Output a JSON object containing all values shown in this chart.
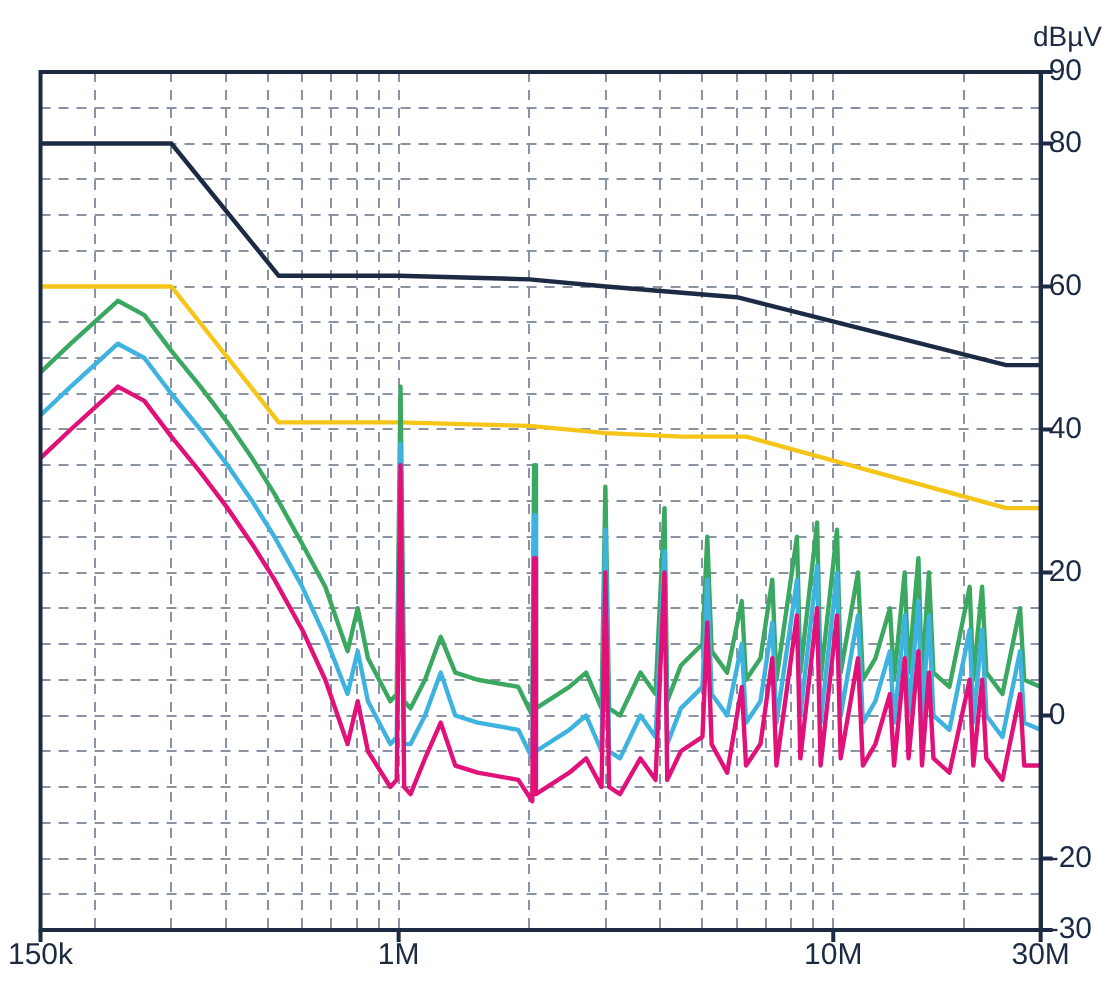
{
  "chart_data": {
    "type": "line",
    "ylabel": "dBµV",
    "log": "x",
    "grid": true,
    "marker": "none",
    "line_style": "solid",
    "xlim": [
      150000,
      30000000
    ],
    "xticks": [
      {
        "value": 150000,
        "label": "150k"
      },
      {
        "value": 200000,
        "label": null
      },
      {
        "value": 300000,
        "label": null
      },
      {
        "value": 400000,
        "label": null
      },
      {
        "value": 500000,
        "label": null
      },
      {
        "value": 600000,
        "label": null
      },
      {
        "value": 700000,
        "label": null
      },
      {
        "value": 800000,
        "label": null
      },
      {
        "value": 900000,
        "label": null
      },
      {
        "value": 1000000,
        "label": "1M"
      },
      {
        "value": 2000000,
        "label": null
      },
      {
        "value": 3000000,
        "label": null
      },
      {
        "value": 4000000,
        "label": null
      },
      {
        "value": 5000000,
        "label": null
      },
      {
        "value": 6000000,
        "label": null
      },
      {
        "value": 7000000,
        "label": null
      },
      {
        "value": 8000000,
        "label": null
      },
      {
        "value": 9000000,
        "label": null
      },
      {
        "value": 10000000,
        "label": "10M"
      },
      {
        "value": 20000000,
        "label": null
      },
      {
        "value": 30000000,
        "label": "30M"
      }
    ],
    "ylim": [
      -30,
      90
    ],
    "yticks": [
      -30,
      {
        "value": -25,
        "label": null
      },
      -20,
      {
        "value": -15,
        "label": null
      },
      {
        "value": -10,
        "label": null
      },
      {
        "value": -5,
        "label": null
      },
      0,
      {
        "value": 5,
        "label": null
      },
      {
        "value": 10,
        "label": null
      },
      {
        "value": 15,
        "label": null
      },
      20,
      {
        "value": 25,
        "label": null
      },
      {
        "value": 30,
        "label": null
      },
      {
        "value": 35,
        "label": null
      },
      40,
      {
        "value": 45,
        "label": null
      },
      {
        "value": 50,
        "label": null
      },
      {
        "value": 55,
        "label": null
      },
      60,
      {
        "value": 65,
        "label": null
      },
      {
        "value": 70,
        "label": null
      },
      {
        "value": 75,
        "label": null
      },
      80,
      {
        "value": 85,
        "label": null
      },
      90
    ],
    "series": [
      {
        "color": "#1c2a44",
        "x": [
          150000,
          300000,
          530000,
          1000000,
          2000000,
          3000000,
          6000000,
          25000000,
          30000000
        ],
        "values": [
          80,
          80,
          61.5,
          61.5,
          61,
          60,
          58.5,
          49,
          49
        ]
      },
      {
        "color": "#f5c518",
        "x": [
          150000,
          300000,
          530000,
          1000000,
          2000000,
          3000000,
          4500000,
          6300000,
          25000000,
          30000000
        ],
        "values": [
          60,
          60,
          41,
          41,
          40.5,
          39.5,
          39,
          39,
          29,
          29
        ]
      },
      {
        "color": "#3aa860",
        "x": [
          150000,
          176000,
          226000,
          260000,
          300000,
          350000,
          404000,
          460000,
          518000,
          600000,
          678000,
          763000,
          805000,
          850000,
          957000,
          990000,
          1010000,
          1030000,
          1065000,
          1150000,
          1250000,
          1350000,
          1520000,
          1885000,
          2030000,
          2050000,
          2070000,
          2470000,
          2700000,
          2930000,
          2990000,
          3050000,
          3230000,
          3600000,
          3900000,
          4090000,
          4150000,
          4460000,
          5000000,
          5130000,
          5250000,
          5700000,
          6160000,
          6300000,
          6800000,
          7240000,
          7400000,
          8250000,
          8400000,
          9180000,
          9350000,
          10200000,
          10400000,
          11400000,
          11700000,
          12500000,
          13500000,
          13800000,
          14600000,
          14900000,
          15700000,
          16000000,
          16600000,
          17000000,
          18500000,
          20600000,
          21000000,
          22000000,
          22500000,
          24500000,
          26900000,
          27500000,
          30000000
        ],
        "values": [
          48,
          52,
          58,
          56,
          51,
          46,
          41,
          36,
          31,
          24,
          18,
          9,
          15,
          8,
          2,
          3,
          46,
          2,
          1,
          5,
          11,
          6,
          5,
          4,
          0,
          35,
          1,
          4,
          6,
          1,
          32,
          1,
          0,
          6,
          3,
          29,
          2,
          7,
          10,
          25,
          9,
          6,
          16,
          5,
          8,
          19,
          5,
          25,
          6,
          27,
          5,
          26,
          6,
          20,
          5,
          8,
          15,
          5,
          20,
          6,
          22,
          5,
          20,
          6,
          4,
          18,
          5,
          18,
          6,
          3,
          15,
          5,
          4
        ]
      },
      {
        "color": "#3fb3e0",
        "x": [
          150000,
          176000,
          226000,
          260000,
          300000,
          350000,
          404000,
          460000,
          518000,
          600000,
          678000,
          763000,
          805000,
          850000,
          957000,
          990000,
          1010000,
          1030000,
          1065000,
          1150000,
          1250000,
          1350000,
          1520000,
          1885000,
          2030000,
          2050000,
          2070000,
          2470000,
          2700000,
          2930000,
          2990000,
          3050000,
          3230000,
          3600000,
          3900000,
          4090000,
          4150000,
          4460000,
          5000000,
          5130000,
          5250000,
          5700000,
          6160000,
          6300000,
          6800000,
          7240000,
          7400000,
          8250000,
          8400000,
          9180000,
          9350000,
          10200000,
          10400000,
          11400000,
          11700000,
          12500000,
          13500000,
          13800000,
          14600000,
          14900000,
          15700000,
          16000000,
          16600000,
          17000000,
          18500000,
          20600000,
          21000000,
          22000000,
          22500000,
          24500000,
          26900000,
          27500000,
          30000000
        ],
        "values": [
          42,
          46,
          52,
          50,
          45,
          40,
          35,
          30,
          25,
          18,
          11,
          3,
          9,
          2,
          -4,
          -3,
          38,
          -4,
          -4,
          0,
          6,
          0,
          -1,
          -2,
          -6,
          28,
          -5,
          -2,
          0,
          -5,
          26,
          -5,
          -6,
          0,
          -3,
          23,
          -4,
          1,
          4,
          19,
          3,
          0,
          10,
          -1,
          2,
          13,
          -1,
          19,
          0,
          21,
          -1,
          20,
          0,
          14,
          -1,
          2,
          9,
          -1,
          14,
          0,
          16,
          -1,
          14,
          0,
          -2,
          12,
          -1,
          12,
          0,
          -3,
          9,
          -1,
          -2
        ]
      },
      {
        "color": "#e0127a",
        "x": [
          150000,
          176000,
          226000,
          260000,
          300000,
          350000,
          404000,
          460000,
          518000,
          600000,
          678000,
          763000,
          805000,
          850000,
          957000,
          990000,
          1010000,
          1030000,
          1065000,
          1150000,
          1250000,
          1350000,
          1520000,
          1885000,
          2030000,
          2050000,
          2070000,
          2470000,
          2700000,
          2930000,
          2990000,
          3050000,
          3230000,
          3600000,
          3900000,
          4090000,
          4150000,
          4460000,
          5000000,
          5130000,
          5250000,
          5700000,
          6160000,
          6300000,
          6800000,
          7240000,
          7400000,
          8250000,
          8400000,
          9180000,
          9350000,
          10200000,
          10400000,
          11400000,
          11700000,
          12500000,
          13500000,
          13800000,
          14600000,
          14900000,
          15700000,
          16000000,
          16600000,
          17000000,
          18500000,
          20600000,
          21000000,
          22000000,
          22500000,
          24500000,
          26900000,
          27500000,
          30000000
        ],
        "values": [
          36,
          40,
          46,
          44,
          39,
          34,
          29,
          24,
          19,
          12,
          5,
          -4,
          2,
          -5,
          -10,
          -9,
          35,
          -10,
          -11,
          -6,
          -1,
          -7,
          -8,
          -9,
          -12,
          22,
          -11,
          -8,
          -6,
          -10,
          20,
          -10,
          -11,
          -6,
          -9,
          20,
          -9,
          -5,
          -3,
          13,
          -4,
          -8,
          4,
          -7,
          -4,
          8,
          -7,
          14,
          -6,
          15,
          -7,
          14,
          -6,
          8,
          -7,
          -4,
          3,
          -7,
          8,
          -6,
          9,
          -7,
          6,
          -6,
          -8,
          5,
          -7,
          5,
          -6,
          -9,
          3,
          -7,
          -7
        ]
      }
    ]
  }
}
